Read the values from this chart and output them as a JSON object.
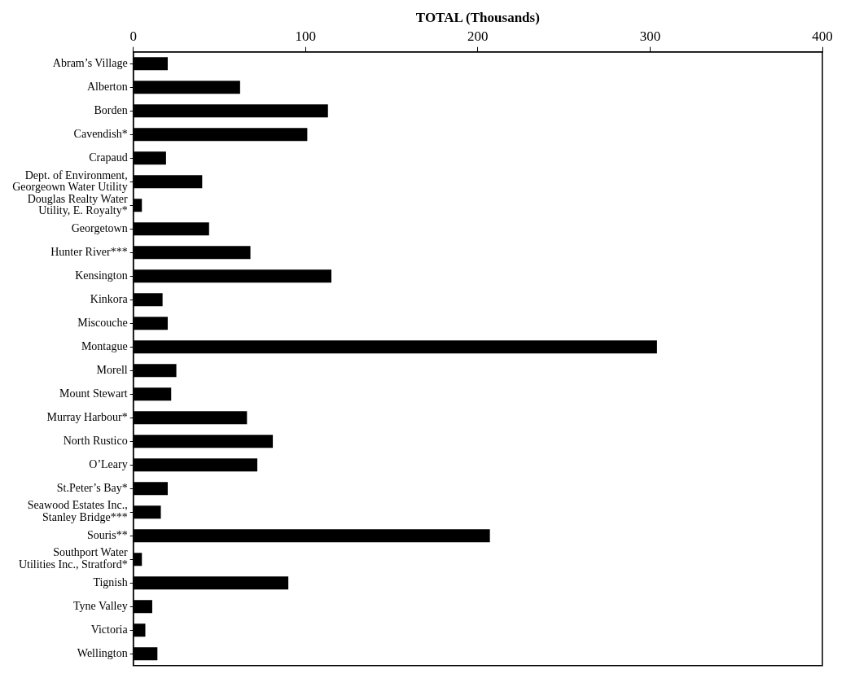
{
  "chart_data": {
    "type": "bar",
    "orientation": "horizontal",
    "xlabel": "TOTAL (Thousands)",
    "categories": [
      "Abram’s Village",
      "Alberton",
      "Borden",
      "Cavendish*",
      "Crapaud",
      "Dept. of Environment,\nGeorgeown Water Utility",
      "Douglas Realty Water\nUtility, E. Royalty*",
      "Georgetown",
      "Hunter River***",
      "Kensington",
      "Kinkora",
      "Miscouche",
      "Montague",
      "Morell",
      "Mount Stewart",
      "Murray Harbour*",
      "North Rustico",
      "O’Leary",
      "St.Peter’s Bay*",
      "Seawood Estates Inc.,\nStanley Bridge***",
      "Souris**",
      "Southport Water\nUtilities Inc., Stratford*",
      "Tignish",
      "Tyne Valley",
      "Victoria",
      "Wellington"
    ],
    "values": [
      20,
      62,
      113,
      101,
      19,
      40,
      5,
      44,
      68,
      115,
      17,
      20,
      304,
      25,
      22,
      66,
      81,
      72,
      20,
      16,
      207,
      5,
      90,
      11,
      7,
      14
    ],
    "color": "#000000",
    "xlim": [
      0,
      400
    ],
    "xticks": [
      0,
      100,
      200,
      300,
      400
    ],
    "grid": false,
    "legend": false
  }
}
